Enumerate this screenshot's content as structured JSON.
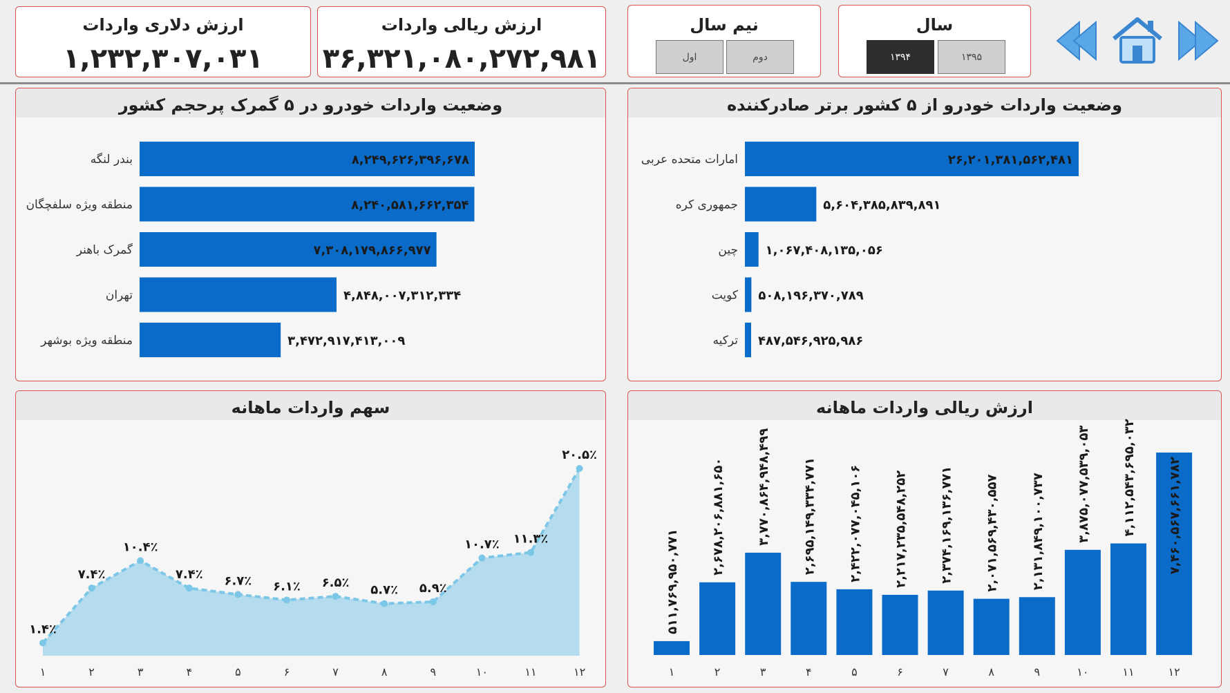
{
  "kpis": {
    "dollar": {
      "title": "ارزش دلاری واردات",
      "value": "۱,۲۳۲,۳۰۷,۰۳۱"
    },
    "rial": {
      "title": "ارزش ریالی واردات",
      "value": "۳۶,۳۲۱,۰۸۰,۲۷۲,۹۸۱"
    }
  },
  "filters": {
    "half_year": {
      "title": "نیم سال",
      "options": [
        "دوم",
        "اول"
      ]
    },
    "year": {
      "title": "سال",
      "options": [
        "۱۳۹۵",
        "۱۳۹۴"
      ],
      "selected": "۱۳۹۴"
    }
  },
  "nav": {
    "icons": [
      "back-icon",
      "home-icon",
      "forward-icon"
    ],
    "color": "#4a90e2"
  },
  "colors": {
    "bar": "#0b6bc9",
    "area_fill": "#b5dcee",
    "area_line": "#7cc7e8",
    "border": "#d9534f"
  },
  "chart_data": [
    {
      "id": "customs",
      "type": "bar",
      "orientation": "horizontal",
      "title": "وضعیت واردات خودرو در ۵ گمرک پرحجم کشور",
      "categories": [
        "بندر لنگه",
        "منطقه ویژه سلفچگان",
        "گمرک باهنر",
        "تهران",
        "منطقه ویژه بوشهر"
      ],
      "values": [
        8249626396678,
        8240581662354,
        7308179866977,
        4848007312334,
        3472917413009
      ],
      "labels": [
        "۸,۲۴۹,۶۲۶,۳۹۶,۶۷۸",
        "۸,۲۴۰,۵۸۱,۶۶۲,۳۵۴",
        "۷,۳۰۸,۱۷۹,۸۶۶,۹۷۷",
        "۴,۸۴۸,۰۰۷,۳۱۲,۳۳۴",
        "۳,۴۷۲,۹۱۷,۴۱۳,۰۰۹"
      ],
      "xlim": [
        0,
        8249626396678
      ]
    },
    {
      "id": "countries",
      "type": "bar",
      "orientation": "horizontal",
      "title": "وضعیت واردات خودرو از ۵ کشور برتر صادرکننده",
      "categories": [
        "امارات متحده عربی",
        "جمهوری کره",
        "چین",
        "کویت",
        "ترکیه"
      ],
      "values": [
        26201381562481,
        5604385839891,
        1067408135056,
        508196370789,
        487546925986
      ],
      "labels": [
        "۲۶,۲۰۱,۳۸۱,۵۶۲,۴۸۱",
        "۵,۶۰۴,۳۸۵,۸۳۹,۸۹۱",
        "۱,۰۶۷,۴۰۸,۱۳۵,۰۵۶",
        "۵۰۸,۱۹۶,۳۷۰,۷۸۹",
        "۴۸۷,۵۴۶,۹۲۵,۹۸۶"
      ],
      "xlim": [
        0,
        26201381562481
      ]
    },
    {
      "id": "monthly_share",
      "type": "area",
      "title": "سهم واردات ماهانه",
      "x": [
        "۱",
        "۲",
        "۳",
        "۴",
        "۵",
        "۶",
        "۷",
        "۸",
        "۹",
        "۱۰",
        "۱۱",
        "۱۲"
      ],
      "y": [
        1.4,
        7.4,
        10.4,
        7.4,
        6.7,
        6.1,
        6.5,
        5.7,
        5.9,
        10.7,
        11.3,
        20.5
      ],
      "labels": [
        "۱.۴٪",
        "۷.۴٪",
        "۱۰.۴٪",
        "۷.۴٪",
        "۶.۷٪",
        "۶.۱٪",
        "۶.۵٪",
        "۵.۷٪",
        "۵.۹٪",
        "۱۰.۷٪",
        "۱۱.۳٪",
        "۲۰.۵٪"
      ],
      "ylim": [
        0,
        20.5
      ]
    },
    {
      "id": "monthly_rial",
      "type": "bar",
      "title": "ارزش ریالی واردات ماهانه",
      "x": [
        "۱",
        "۲",
        "۳",
        "۴",
        "۵",
        "۶",
        "۷",
        "۸",
        "۹",
        "۱۰",
        "۱۱",
        "۱۲"
      ],
      "values": [
        511769950771,
        2678206881650,
        3770864948499,
        2695149334771,
        2422077045106,
        2217235548252,
        2374169136771,
        2071569430557,
        2131849100737,
        3875077539053,
        4112543695032,
        7460567661782
      ],
      "labels": [
        "۵۱۱,۷۶۹,۹۵۰,۷۷۱",
        "۲,۶۷۸,۲۰۶,۸۸۱,۶۵۰",
        "۳,۷۷۰,۸۶۴,۹۴۸,۴۹۹",
        "۲,۶۹۵,۱۴۹,۳۳۴,۷۷۱",
        "۲,۴۲۲,۰۷۷,۰۴۵,۱۰۶",
        "۲,۲۱۷,۲۳۵,۵۴۸,۲۵۲",
        "۲,۳۷۴,۱۶۹,۱۳۶,۷۷۱",
        "۲,۰۷۱,۵۶۹,۴۳۰,۵۵۷",
        "۲,۱۳۱,۸۴۹,۱۰۰,۷۳۷",
        "۳,۸۷۵,۰۷۷,۵۳۹,۰۵۳",
        "۴,۱۱۲,۵۴۳,۶۹۵,۰۳۲",
        "۷,۴۶۰,۵۶۷,۶۶۱,۷۸۲"
      ],
      "ylim": [
        0,
        7460567661782
      ]
    }
  ]
}
